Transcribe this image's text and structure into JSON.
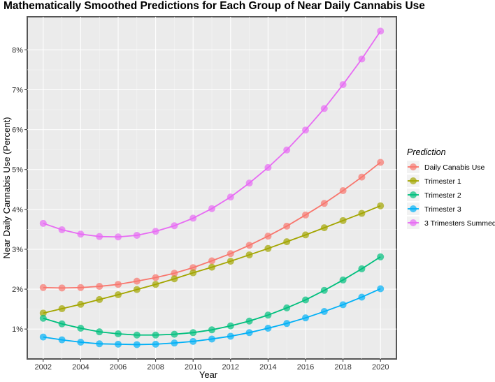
{
  "chart_data": {
    "type": "line",
    "title": "Mathematically Smoothed Predictions for Each Group of Near Daily Cannabis Use",
    "xlabel": "Year",
    "ylabel": "Near Daily Cannabis Use (Percent)",
    "x": [
      2002,
      2003,
      2004,
      2005,
      2006,
      2007,
      2008,
      2009,
      2010,
      2011,
      2012,
      2013,
      2014,
      2015,
      2016,
      2017,
      2018,
      2019,
      2020
    ],
    "xticks": [
      2002,
      2004,
      2006,
      2008,
      2010,
      2012,
      2014,
      2016,
      2018,
      2020
    ],
    "xtick_labels": [
      "2002",
      "2004",
      "2006",
      "2008",
      "2010",
      "2012",
      "2014",
      "2016",
      "2018",
      "2020"
    ],
    "yticks": [
      1,
      2,
      3,
      4,
      5,
      6,
      7,
      8
    ],
    "ytick_labels": [
      "1%",
      "2%",
      "3%",
      "4%",
      "5%",
      "6%",
      "7%",
      "8%"
    ],
    "xlim": [
      2001.15,
      2020.85
    ],
    "ylim": [
      0.25,
      8.83
    ],
    "grid": true,
    "legend": {
      "title": "Prediction",
      "placement": "right"
    },
    "series": [
      {
        "name": "Daily Canabis Use",
        "color": "#F8766D",
        "values": [
          2.04,
          2.03,
          2.04,
          2.07,
          2.12,
          2.2,
          2.29,
          2.4,
          2.54,
          2.71,
          2.89,
          3.1,
          3.33,
          3.58,
          3.86,
          4.15,
          4.47,
          4.81,
          5.18
        ]
      },
      {
        "name": "Trimester 1",
        "color": "#A3A500",
        "values": [
          1.4,
          1.51,
          1.62,
          1.74,
          1.86,
          1.99,
          2.12,
          2.26,
          2.41,
          2.55,
          2.7,
          2.86,
          3.02,
          3.19,
          3.36,
          3.54,
          3.72,
          3.9,
          4.09
        ]
      },
      {
        "name": "Trimester 2",
        "color": "#00BF7D",
        "values": [
          1.27,
          1.13,
          1.02,
          0.93,
          0.88,
          0.85,
          0.85,
          0.87,
          0.91,
          0.98,
          1.08,
          1.2,
          1.35,
          1.53,
          1.73,
          1.97,
          2.23,
          2.51,
          2.81
        ]
      },
      {
        "name": "Trimester 3",
        "color": "#00B0F6",
        "values": [
          0.8,
          0.73,
          0.67,
          0.63,
          0.62,
          0.61,
          0.62,
          0.65,
          0.69,
          0.75,
          0.82,
          0.91,
          1.02,
          1.14,
          1.28,
          1.44,
          1.61,
          1.8,
          2.01
        ]
      },
      {
        "name": "3 Trimesters Summed",
        "color": "#E76BF3",
        "values": [
          3.65,
          3.49,
          3.38,
          3.32,
          3.31,
          3.35,
          3.45,
          3.59,
          3.78,
          4.02,
          4.31,
          4.66,
          5.05,
          5.49,
          5.99,
          6.53,
          7.13,
          7.77,
          8.47
        ]
      }
    ]
  }
}
